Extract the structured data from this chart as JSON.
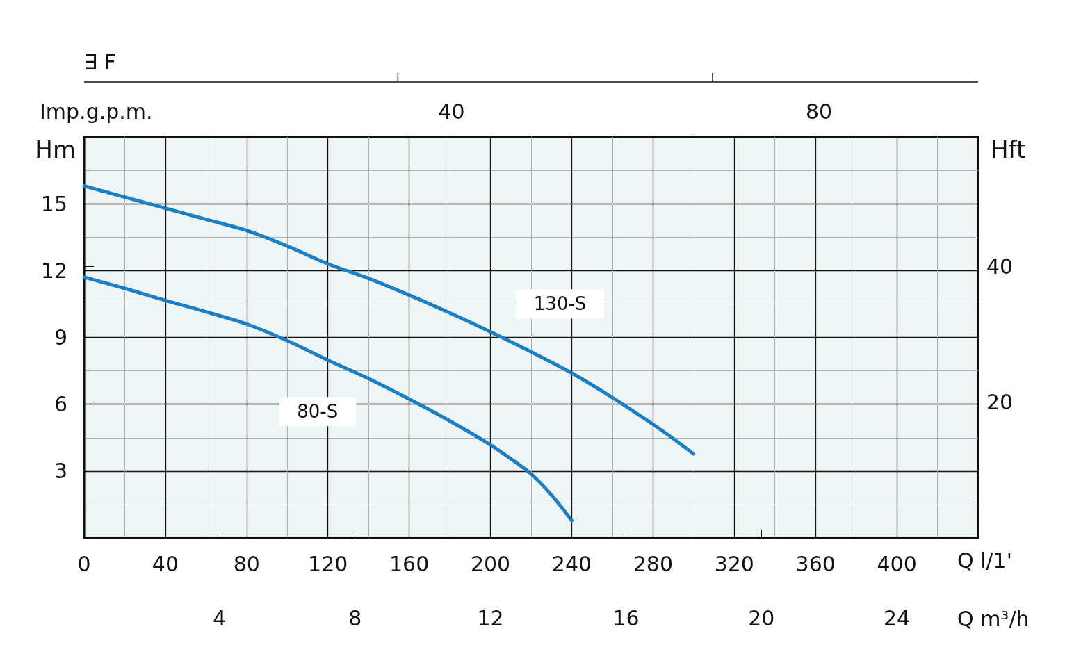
{
  "chart_data": {
    "type": "line",
    "ylabel": "Hm",
    "y2label": "Hft",
    "xlabel": "Q l/1'",
    "x2label": "Q m³/h",
    "annotations": [
      "Imp.g.p.m.",
      "40",
      "80",
      "∃ F"
    ],
    "xlim": [
      0,
      440
    ],
    "xticks": [
      0,
      40,
      80,
      120,
      160,
      200,
      240,
      280,
      320,
      360,
      400
    ],
    "ylim": [
      0,
      18
    ],
    "yticks": [
      3,
      6,
      9,
      12,
      15
    ],
    "y2lim": [
      0,
      59.1
    ],
    "y2ticks": [
      20,
      40
    ],
    "x2lim": [
      0,
      26.4
    ],
    "x2ticks": [
      4,
      8,
      12,
      16,
      20,
      24
    ],
    "grid": true,
    "legend": false,
    "marker": "none",
    "line_style": "solid",
    "series": [
      {
        "name": "130-S",
        "color": "#1a7fc4",
        "x": [
          0,
          20,
          40,
          60,
          80,
          100,
          120,
          140,
          160,
          180,
          200,
          220,
          240,
          260,
          280,
          290,
          300
        ],
        "values": [
          15.8,
          15.3,
          14.8,
          14.3,
          13.8,
          13.1,
          12.3,
          11.65,
          10.9,
          10.1,
          9.25,
          8.35,
          7.4,
          6.3,
          5.1,
          4.45,
          3.77
        ]
      },
      {
        "name": "80-S",
        "color": "#1a7fc4",
        "x": [
          0,
          20,
          40,
          60,
          80,
          100,
          120,
          140,
          160,
          180,
          200,
          210,
          220,
          230,
          240
        ],
        "values": [
          11.7,
          11.2,
          10.66,
          10.15,
          9.6,
          8.85,
          7.98,
          7.15,
          6.23,
          5.25,
          4.18,
          3.55,
          2.87,
          1.93,
          0.78
        ]
      }
    ]
  }
}
